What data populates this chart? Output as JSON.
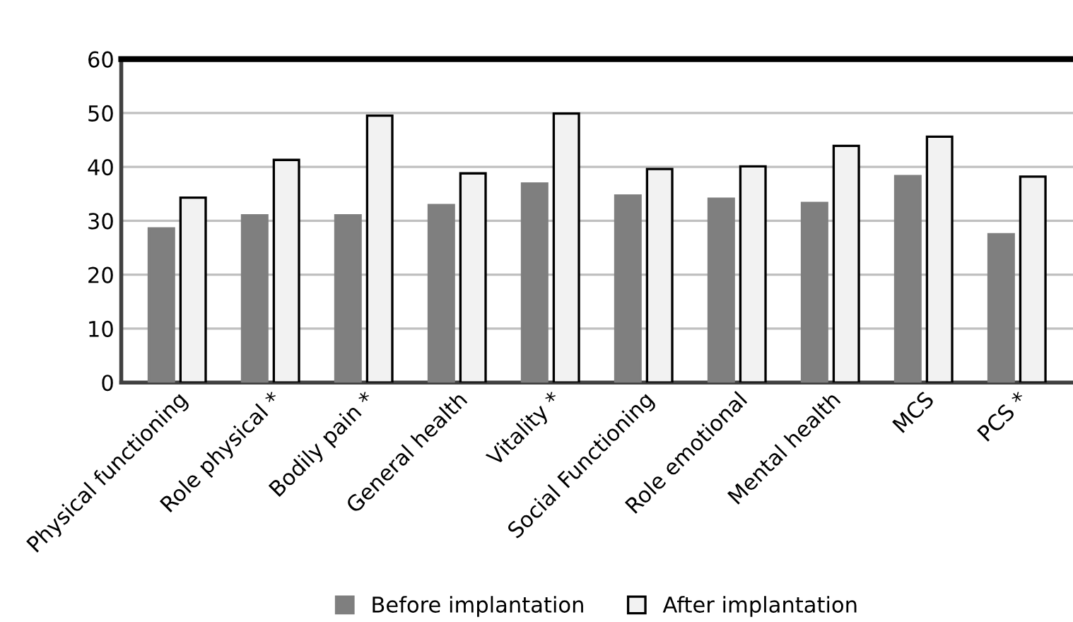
{
  "chart_data": {
    "type": "bar",
    "categories": [
      "Physical functioning",
      "Role physical *",
      "Bodily pain *",
      "General health",
      "Vitality *",
      "Social Functioning",
      "Role emotional",
      "Mental health",
      "MCS",
      "PCS *"
    ],
    "series": [
      {
        "name": "Before implantation",
        "color": "#7f7f7f",
        "values": [
          28.6,
          31.0,
          31.0,
          32.9,
          36.9,
          34.7,
          34.1,
          33.3,
          38.3,
          27.5
        ]
      },
      {
        "name": "After implantation",
        "color": "#f2f2f2",
        "values": [
          34.3,
          41.3,
          49.5,
          38.8,
          49.9,
          39.6,
          40.1,
          43.9,
          45.6,
          38.2
        ]
      }
    ],
    "ylim": [
      0,
      60
    ],
    "yticks": [
      0,
      10,
      20,
      30,
      40,
      50,
      60
    ],
    "grid": "y",
    "legend": "bottom"
  }
}
